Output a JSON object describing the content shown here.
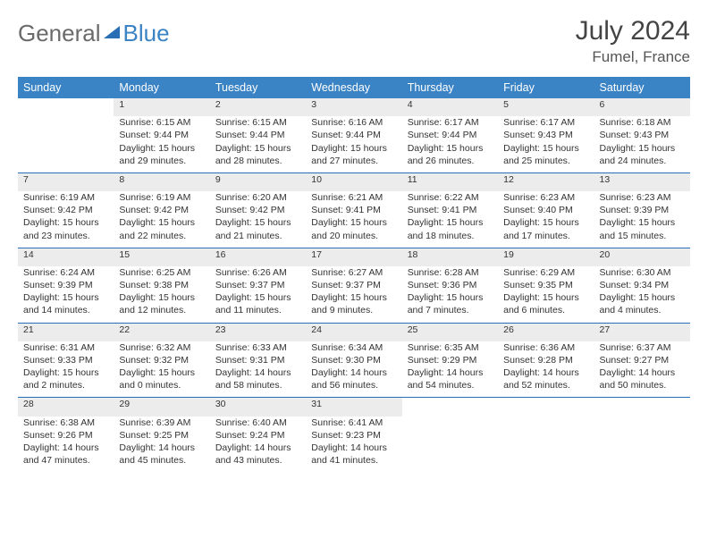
{
  "brand": {
    "part1": "General",
    "part2": "Blue"
  },
  "header": {
    "month": "July 2024",
    "location": "Fumel, France"
  },
  "colors": {
    "header_bg": "#3a83c4",
    "header_text": "#ffffff",
    "daynum_bg": "#ececec",
    "row_divider": "#2a6fb5",
    "text": "#333333",
    "brand_gray": "#6a6a6a",
    "brand_blue": "#3a83c4"
  },
  "weekdays": [
    "Sunday",
    "Monday",
    "Tuesday",
    "Wednesday",
    "Thursday",
    "Friday",
    "Saturday"
  ],
  "weeks": [
    {
      "nums": [
        "",
        "1",
        "2",
        "3",
        "4",
        "5",
        "6"
      ],
      "cells": [
        null,
        {
          "sunrise": "Sunrise: 6:15 AM",
          "sunset": "Sunset: 9:44 PM",
          "daylight": "Daylight: 15 hours and 29 minutes."
        },
        {
          "sunrise": "Sunrise: 6:15 AM",
          "sunset": "Sunset: 9:44 PM",
          "daylight": "Daylight: 15 hours and 28 minutes."
        },
        {
          "sunrise": "Sunrise: 6:16 AM",
          "sunset": "Sunset: 9:44 PM",
          "daylight": "Daylight: 15 hours and 27 minutes."
        },
        {
          "sunrise": "Sunrise: 6:17 AM",
          "sunset": "Sunset: 9:44 PM",
          "daylight": "Daylight: 15 hours and 26 minutes."
        },
        {
          "sunrise": "Sunrise: 6:17 AM",
          "sunset": "Sunset: 9:43 PM",
          "daylight": "Daylight: 15 hours and 25 minutes."
        },
        {
          "sunrise": "Sunrise: 6:18 AM",
          "sunset": "Sunset: 9:43 PM",
          "daylight": "Daylight: 15 hours and 24 minutes."
        }
      ]
    },
    {
      "nums": [
        "7",
        "8",
        "9",
        "10",
        "11",
        "12",
        "13"
      ],
      "cells": [
        {
          "sunrise": "Sunrise: 6:19 AM",
          "sunset": "Sunset: 9:42 PM",
          "daylight": "Daylight: 15 hours and 23 minutes."
        },
        {
          "sunrise": "Sunrise: 6:19 AM",
          "sunset": "Sunset: 9:42 PM",
          "daylight": "Daylight: 15 hours and 22 minutes."
        },
        {
          "sunrise": "Sunrise: 6:20 AM",
          "sunset": "Sunset: 9:42 PM",
          "daylight": "Daylight: 15 hours and 21 minutes."
        },
        {
          "sunrise": "Sunrise: 6:21 AM",
          "sunset": "Sunset: 9:41 PM",
          "daylight": "Daylight: 15 hours and 20 minutes."
        },
        {
          "sunrise": "Sunrise: 6:22 AM",
          "sunset": "Sunset: 9:41 PM",
          "daylight": "Daylight: 15 hours and 18 minutes."
        },
        {
          "sunrise": "Sunrise: 6:23 AM",
          "sunset": "Sunset: 9:40 PM",
          "daylight": "Daylight: 15 hours and 17 minutes."
        },
        {
          "sunrise": "Sunrise: 6:23 AM",
          "sunset": "Sunset: 9:39 PM",
          "daylight": "Daylight: 15 hours and 15 minutes."
        }
      ]
    },
    {
      "nums": [
        "14",
        "15",
        "16",
        "17",
        "18",
        "19",
        "20"
      ],
      "cells": [
        {
          "sunrise": "Sunrise: 6:24 AM",
          "sunset": "Sunset: 9:39 PM",
          "daylight": "Daylight: 15 hours and 14 minutes."
        },
        {
          "sunrise": "Sunrise: 6:25 AM",
          "sunset": "Sunset: 9:38 PM",
          "daylight": "Daylight: 15 hours and 12 minutes."
        },
        {
          "sunrise": "Sunrise: 6:26 AM",
          "sunset": "Sunset: 9:37 PM",
          "daylight": "Daylight: 15 hours and 11 minutes."
        },
        {
          "sunrise": "Sunrise: 6:27 AM",
          "sunset": "Sunset: 9:37 PM",
          "daylight": "Daylight: 15 hours and 9 minutes."
        },
        {
          "sunrise": "Sunrise: 6:28 AM",
          "sunset": "Sunset: 9:36 PM",
          "daylight": "Daylight: 15 hours and 7 minutes."
        },
        {
          "sunrise": "Sunrise: 6:29 AM",
          "sunset": "Sunset: 9:35 PM",
          "daylight": "Daylight: 15 hours and 6 minutes."
        },
        {
          "sunrise": "Sunrise: 6:30 AM",
          "sunset": "Sunset: 9:34 PM",
          "daylight": "Daylight: 15 hours and 4 minutes."
        }
      ]
    },
    {
      "nums": [
        "21",
        "22",
        "23",
        "24",
        "25",
        "26",
        "27"
      ],
      "cells": [
        {
          "sunrise": "Sunrise: 6:31 AM",
          "sunset": "Sunset: 9:33 PM",
          "daylight": "Daylight: 15 hours and 2 minutes."
        },
        {
          "sunrise": "Sunrise: 6:32 AM",
          "sunset": "Sunset: 9:32 PM",
          "daylight": "Daylight: 15 hours and 0 minutes."
        },
        {
          "sunrise": "Sunrise: 6:33 AM",
          "sunset": "Sunset: 9:31 PM",
          "daylight": "Daylight: 14 hours and 58 minutes."
        },
        {
          "sunrise": "Sunrise: 6:34 AM",
          "sunset": "Sunset: 9:30 PM",
          "daylight": "Daylight: 14 hours and 56 minutes."
        },
        {
          "sunrise": "Sunrise: 6:35 AM",
          "sunset": "Sunset: 9:29 PM",
          "daylight": "Daylight: 14 hours and 54 minutes."
        },
        {
          "sunrise": "Sunrise: 6:36 AM",
          "sunset": "Sunset: 9:28 PM",
          "daylight": "Daylight: 14 hours and 52 minutes."
        },
        {
          "sunrise": "Sunrise: 6:37 AM",
          "sunset": "Sunset: 9:27 PM",
          "daylight": "Daylight: 14 hours and 50 minutes."
        }
      ]
    },
    {
      "nums": [
        "28",
        "29",
        "30",
        "31",
        "",
        "",
        ""
      ],
      "cells": [
        {
          "sunrise": "Sunrise: 6:38 AM",
          "sunset": "Sunset: 9:26 PM",
          "daylight": "Daylight: 14 hours and 47 minutes."
        },
        {
          "sunrise": "Sunrise: 6:39 AM",
          "sunset": "Sunset: 9:25 PM",
          "daylight": "Daylight: 14 hours and 45 minutes."
        },
        {
          "sunrise": "Sunrise: 6:40 AM",
          "sunset": "Sunset: 9:24 PM",
          "daylight": "Daylight: 14 hours and 43 minutes."
        },
        {
          "sunrise": "Sunrise: 6:41 AM",
          "sunset": "Sunset: 9:23 PM",
          "daylight": "Daylight: 14 hours and 41 minutes."
        },
        null,
        null,
        null
      ]
    }
  ]
}
